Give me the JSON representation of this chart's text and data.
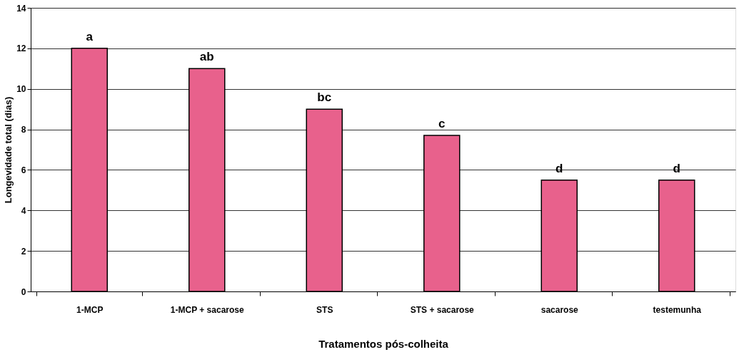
{
  "chart_data": {
    "type": "bar",
    "xlabel": "Tratamentos pós-colheita",
    "ylabel": "Longevidade total (dias)",
    "categories": [
      "1-MCP",
      "1-MCP + sacarose",
      "STS",
      "STS + sacarose",
      "sacarose",
      "testemunha"
    ],
    "values": [
      12,
      11,
      9,
      7.7,
      5.5,
      5.5
    ],
    "color": "#e8618c",
    "ylim": [
      0,
      14
    ],
    "yticks": [
      0,
      2,
      4,
      6,
      8,
      10,
      12,
      14
    ],
    "grid": "y",
    "annotations": [
      {
        "text": "a",
        "x": "1-MCP",
        "y": 12
      },
      {
        "text": "ab",
        "x": "1-MCP + sacarose",
        "y": 11
      },
      {
        "text": "bc",
        "x": "STS",
        "y": 9
      },
      {
        "text": "c",
        "x": "STS + sacarose",
        "y": 7.7
      },
      {
        "text": "d",
        "x": "sacarose",
        "y": 5.5
      },
      {
        "text": "d",
        "x": "testemunha",
        "y": 5.5
      }
    ]
  }
}
